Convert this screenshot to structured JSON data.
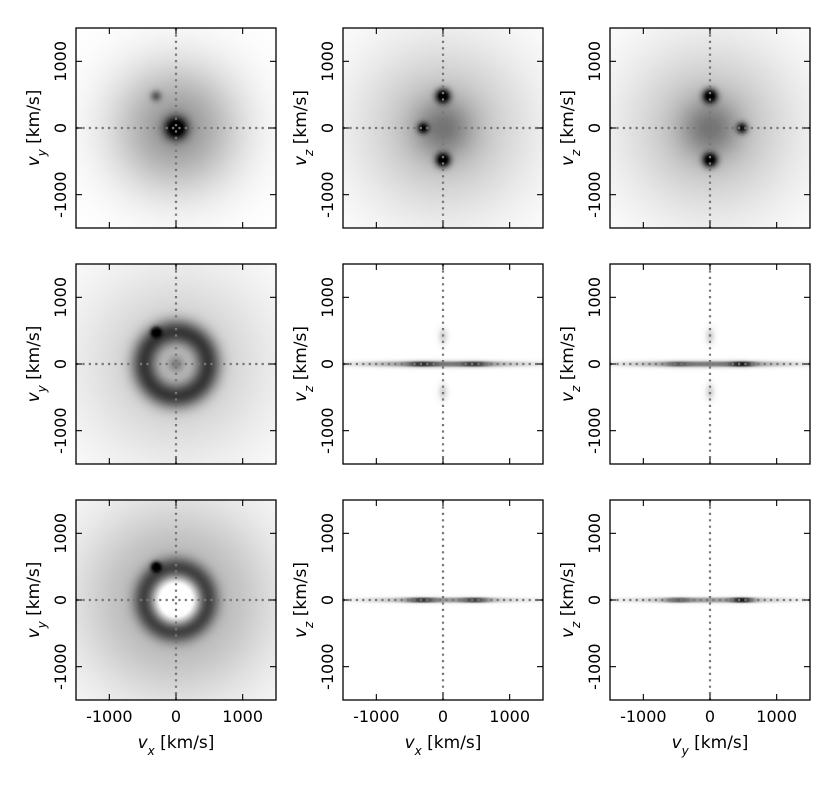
{
  "chart_data": {
    "type": "heatmap",
    "colormap": "gray_r",
    "axis_range": [
      -1500,
      1500
    ],
    "ticks": [
      -1000,
      0,
      1000
    ],
    "tick_labels": [
      "-1000",
      "0",
      "1000"
    ],
    "guide_lines": {
      "x": 0,
      "y": 0,
      "style": "dotted"
    },
    "axis_labels": {
      "vx": {
        "sym": "v",
        "sub": "x",
        "unit": " [km/s]"
      },
      "vy": {
        "sym": "v",
        "sub": "y",
        "unit": " [km/s]"
      },
      "vz": {
        "sym": "v",
        "sub": "z",
        "unit": " [km/s]"
      }
    },
    "rows": [
      {
        "panels": [
          {
            "x": "vx",
            "y": "vy",
            "features": [
              {
                "kind": "halo",
                "x": 0,
                "y": 0,
                "sx": 650,
                "sy": 650,
                "amp": 0.35
              },
              {
                "kind": "blob",
                "x": 0,
                "y": 0,
                "sx": 110,
                "sy": 110,
                "amp": 0.95
              },
              {
                "kind": "blob",
                "x": -300,
                "y": 480,
                "sx": 55,
                "sy": 55,
                "amp": 0.35
              }
            ]
          },
          {
            "x": "vx",
            "y": "vz",
            "features": [
              {
                "kind": "halo",
                "x": 0,
                "y": 0,
                "sx": 900,
                "sy": 900,
                "amp": 0.22
              },
              {
                "kind": "blob",
                "x": 0,
                "y": 0,
                "sx": 300,
                "sy": 300,
                "amp": 0.25
              },
              {
                "kind": "blob",
                "x": 0,
                "y": 480,
                "sx": 70,
                "sy": 70,
                "amp": 1.0
              },
              {
                "kind": "blob",
                "x": 0,
                "y": -480,
                "sx": 70,
                "sy": 70,
                "amp": 1.0
              },
              {
                "kind": "blob",
                "x": -300,
                "y": 0,
                "sx": 55,
                "sy": 55,
                "amp": 0.7
              }
            ]
          },
          {
            "x": "vy",
            "y": "vz",
            "features": [
              {
                "kind": "halo",
                "x": 0,
                "y": 0,
                "sx": 900,
                "sy": 900,
                "amp": 0.22
              },
              {
                "kind": "blob",
                "x": 0,
                "y": 0,
                "sx": 300,
                "sy": 300,
                "amp": 0.25
              },
              {
                "kind": "blob",
                "x": 0,
                "y": 480,
                "sx": 70,
                "sy": 70,
                "amp": 1.0
              },
              {
                "kind": "blob",
                "x": 0,
                "y": -480,
                "sx": 70,
                "sy": 70,
                "amp": 1.0
              },
              {
                "kind": "blob",
                "x": 480,
                "y": 0,
                "sx": 55,
                "sy": 55,
                "amp": 0.7
              }
            ]
          }
        ]
      },
      {
        "panels": [
          {
            "x": "vx",
            "y": "vy",
            "features": [
              {
                "kind": "halo",
                "x": 0,
                "y": 0,
                "sx": 1000,
                "sy": 1000,
                "amp": 0.18
              },
              {
                "kind": "ring",
                "x": 0,
                "y": 0,
                "r": 480,
                "w": 130,
                "amp": 0.55
              },
              {
                "kind": "blob",
                "x": 0,
                "y": 0,
                "sx": 90,
                "sy": 90,
                "amp": 0.25
              },
              {
                "kind": "blob",
                "x": -300,
                "y": 480,
                "sx": 45,
                "sy": 45,
                "amp": 1.0
              }
            ]
          },
          {
            "x": "vx",
            "y": "vz",
            "features": [
              {
                "kind": "blob",
                "x": 0,
                "y": 0,
                "sx": 750,
                "sy": 28,
                "amp": 0.55
              },
              {
                "kind": "blob",
                "x": -320,
                "y": 0,
                "sx": 140,
                "sy": 22,
                "amp": 0.5
              },
              {
                "kind": "blob",
                "x": 480,
                "y": 0,
                "sx": 140,
                "sy": 22,
                "amp": 0.5
              },
              {
                "kind": "blob",
                "x": 0,
                "y": 420,
                "sx": 45,
                "sy": 80,
                "amp": 0.15
              },
              {
                "kind": "blob",
                "x": 0,
                "y": -420,
                "sx": 45,
                "sy": 80,
                "amp": 0.15
              }
            ]
          },
          {
            "x": "vy",
            "y": "vz",
            "features": [
              {
                "kind": "blob",
                "x": 0,
                "y": 0,
                "sx": 750,
                "sy": 28,
                "amp": 0.55
              },
              {
                "kind": "blob",
                "x": 480,
                "y": 0,
                "sx": 120,
                "sy": 22,
                "amp": 0.7
              },
              {
                "kind": "blob",
                "x": -480,
                "y": 0,
                "sx": 120,
                "sy": 22,
                "amp": 0.3
              },
              {
                "kind": "blob",
                "x": 0,
                "y": 420,
                "sx": 45,
                "sy": 80,
                "amp": 0.15
              },
              {
                "kind": "blob",
                "x": 0,
                "y": -420,
                "sx": 45,
                "sy": 80,
                "amp": 0.15
              }
            ]
          }
        ]
      },
      {
        "panels": [
          {
            "x": "vx",
            "y": "vy",
            "features": [
              {
                "kind": "halo",
                "x": 0,
                "y": 0,
                "sx": 1000,
                "sy": 1000,
                "amp": 0.3
              },
              {
                "kind": "ring",
                "x": 0,
                "y": 0,
                "r": 470,
                "w": 120,
                "amp": 0.55
              },
              {
                "kind": "hole",
                "x": 0,
                "y": 0,
                "sx": 300,
                "sy": 300,
                "amp": 0.55
              },
              {
                "kind": "blob",
                "x": -300,
                "y": 500,
                "sx": 45,
                "sy": 45,
                "amp": 1.0
              }
            ]
          },
          {
            "x": "vx",
            "y": "vz",
            "features": [
              {
                "kind": "blob",
                "x": 0,
                "y": 0,
                "sx": 700,
                "sy": 22,
                "amp": 0.45
              },
              {
                "kind": "blob",
                "x": -320,
                "y": 0,
                "sx": 140,
                "sy": 18,
                "amp": 0.7
              },
              {
                "kind": "blob",
                "x": 480,
                "y": 0,
                "sx": 140,
                "sy": 18,
                "amp": 0.7
              }
            ]
          },
          {
            "x": "vy",
            "y": "vz",
            "features": [
              {
                "kind": "blob",
                "x": 0,
                "y": 0,
                "sx": 700,
                "sy": 22,
                "amp": 0.45
              },
              {
                "kind": "blob",
                "x": 480,
                "y": 0,
                "sx": 110,
                "sy": 18,
                "amp": 1.0
              },
              {
                "kind": "blob",
                "x": -480,
                "y": 0,
                "sx": 130,
                "sy": 18,
                "amp": 0.5
              }
            ]
          }
        ]
      }
    ]
  }
}
